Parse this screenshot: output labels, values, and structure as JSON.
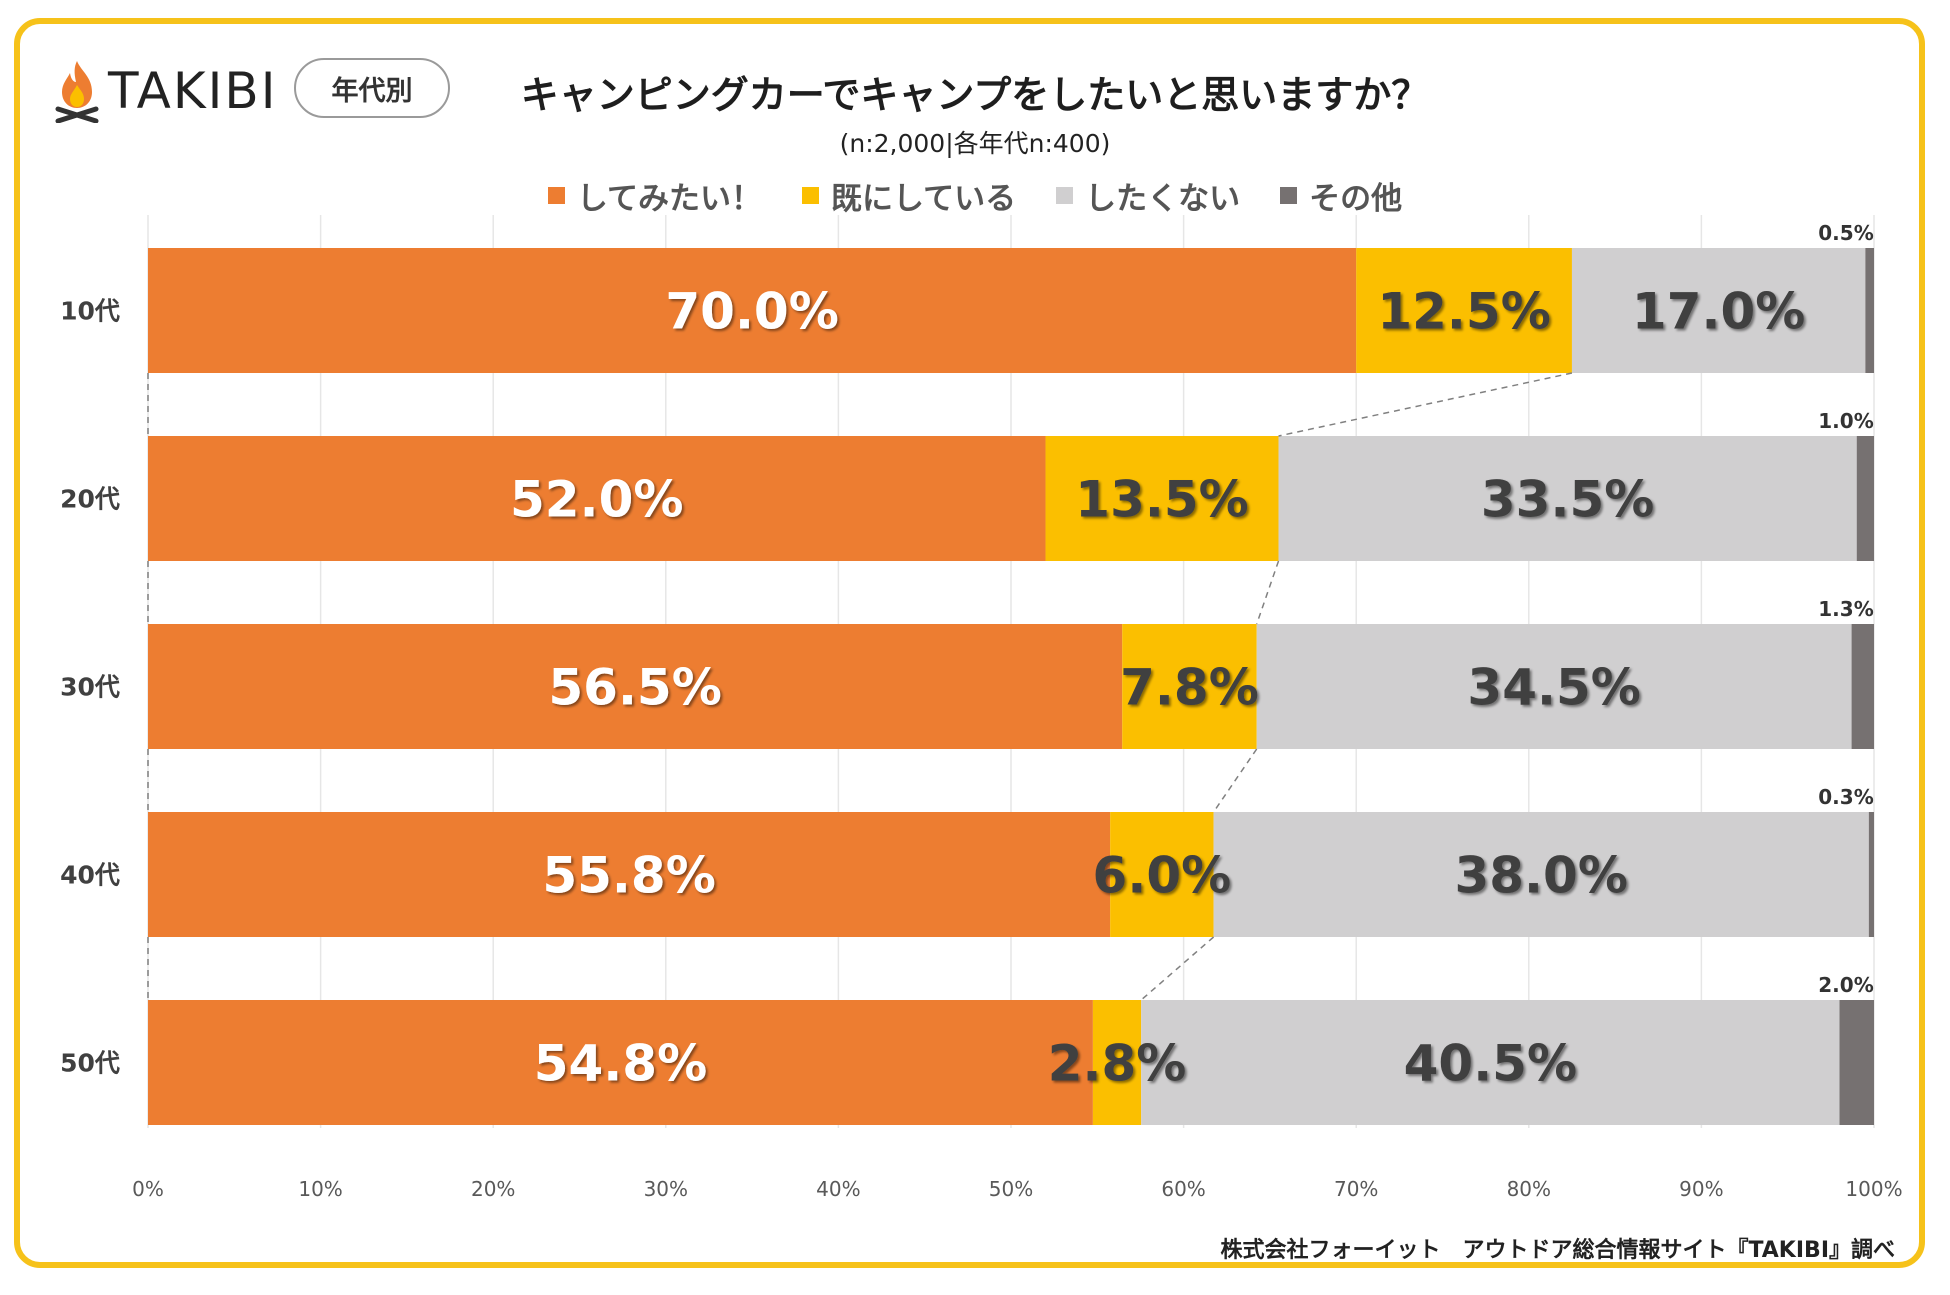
{
  "brand": {
    "name": "TAKIBI",
    "tag": "年代別"
  },
  "chart_data": {
    "type": "bar",
    "orientation": "horizontal",
    "stacked": "100%",
    "title": "キャンピングカーでキャンプをしたいと思いますか？",
    "subtitle": "(n:2,000|各年代n:400)",
    "categories": [
      "10代",
      "20代",
      "30代",
      "40代",
      "50代"
    ],
    "series": [
      {
        "name": "してみたい！",
        "color": "#ed7d31",
        "label_color": "#ffffff",
        "values": [
          70.0,
          52.0,
          56.5,
          55.8,
          54.8
        ],
        "labels": [
          "70.0%",
          "52.0%",
          "56.5%",
          "55.8%",
          "54.8%"
        ]
      },
      {
        "name": "既にしている",
        "color": "#fbbf00",
        "label_color": "#404040",
        "values": [
          12.5,
          13.5,
          7.8,
          6.0,
          2.8
        ],
        "labels": [
          "12.5%",
          "13.5%",
          "7.8%",
          "6.0%",
          "2.8%"
        ]
      },
      {
        "name": "したくない",
        "color": "#d0cfd0",
        "label_color": "#404040",
        "values": [
          17.0,
          33.5,
          34.5,
          38.0,
          40.5
        ],
        "labels": [
          "17.0%",
          "33.5%",
          "34.5%",
          "38.0%",
          "40.5%"
        ]
      },
      {
        "name": "その他",
        "color": "#767171",
        "label_color": "#333333",
        "values": [
          0.5,
          1.0,
          1.3,
          0.3,
          2.0
        ],
        "labels": [
          "0.5%",
          "1.0%",
          "1.3%",
          "0.3%",
          "2.0%"
        ]
      }
    ],
    "xlim": [
      0,
      100
    ],
    "xticks": [
      "0%",
      "10%",
      "20%",
      "30%",
      "40%",
      "50%",
      "60%",
      "70%",
      "80%",
      "90%",
      "100%"
    ],
    "legend_position": "top",
    "grid": true
  },
  "footer": "株式会社フォーイット　アウトドア総合情報サイト『TAKIBI』調べ"
}
